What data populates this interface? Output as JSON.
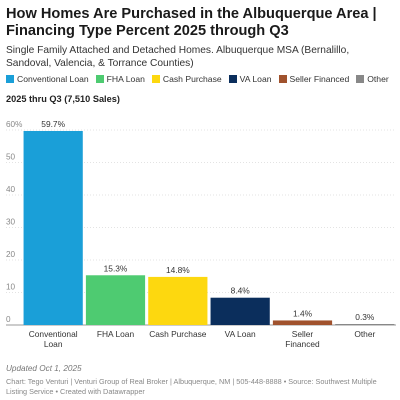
{
  "title": "How Homes Are Purchased in the Albuquerque Area | Financing Type Percent 2025 through Q3",
  "subtitle": "Single Family Attached and Detached Homes. Albuquerque MSA (Bernalillo, Sandoval, Valencia, & Torrance Counties)",
  "note": "2025 thru Q3 (7,510 Sales)",
  "footer": {
    "updated": "Updated Oct 1, 2025",
    "source": "Chart: Tego Venturi | Venturi Group of Real Broker | Albuquerque, NM | 505-448-8888 • Source: Southwest Multiple Listing Service • Created with Datawrapper"
  },
  "chart_data": {
    "type": "bar",
    "title": "How Homes Are Purchased in the Albuquerque Area | Financing Type Percent 2025 through Q3",
    "categories": [
      "Conventional Loan",
      "FHA Loan",
      "Cash Purchase",
      "VA Loan",
      "Seller Financed",
      "Other"
    ],
    "values": [
      59.7,
      15.3,
      14.8,
      8.4,
      1.4,
      0.3
    ],
    "data_labels": [
      "59.7%",
      "15.3%",
      "14.8%",
      "8.4%",
      "1.4%",
      "0.3%"
    ],
    "colors": [
      "#1a9fd8",
      "#4ecb71",
      "#fdd80f",
      "#0b2e5c",
      "#a0522d",
      "#888888"
    ],
    "ylim": [
      0,
      60
    ],
    "yticks": [
      0,
      10,
      20,
      30,
      40,
      50,
      60
    ],
    "ytick_labels": [
      "0",
      "10",
      "20",
      "30",
      "40",
      "50",
      "60%"
    ],
    "grid": true,
    "legend": {
      "position": "top-left",
      "entries": [
        "Conventional Loan",
        "FHA Loan",
        "Cash Purchase",
        "VA Loan",
        "Seller Financed",
        "Other"
      ]
    }
  }
}
